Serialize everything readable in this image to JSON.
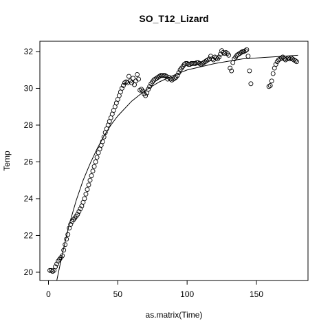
{
  "chart_data": {
    "type": "scatter",
    "title": "SO_T12_Lizard",
    "x_label": "as.matrix(Time)",
    "y_label": "Temp",
    "xlim": [
      -6.2,
      187.2
    ],
    "ylim": [
      19.55,
      32.56
    ],
    "xticks": [
      0,
      50,
      100,
      150
    ],
    "yticks": [
      20,
      22,
      24,
      26,
      28,
      30,
      32
    ],
    "color": "#000000",
    "x": [
      1,
      2,
      3,
      4,
      5,
      6,
      7,
      8,
      9,
      10,
      11,
      12,
      13,
      14,
      15,
      16,
      17,
      18,
      19,
      20,
      21,
      22,
      23,
      24,
      25,
      26,
      27,
      28,
      29,
      30,
      31,
      32,
      33,
      34,
      35,
      36,
      37,
      38,
      39,
      40,
      41,
      42,
      43,
      44,
      45,
      46,
      47,
      48,
      49,
      50,
      51,
      52,
      53,
      54,
      55,
      56,
      57,
      58,
      59,
      60,
      61,
      62,
      63,
      64,
      65,
      66,
      67,
      68,
      69,
      70,
      71,
      72,
      73,
      74,
      75,
      76,
      77,
      78,
      79,
      80,
      81,
      82,
      83,
      84,
      85,
      86,
      87,
      88,
      89,
      90,
      91,
      92,
      93,
      94,
      95,
      96,
      97,
      98,
      99,
      100,
      101,
      102,
      103,
      104,
      105,
      106,
      107,
      108,
      109,
      110,
      111,
      112,
      113,
      114,
      115,
      116,
      117,
      118,
      119,
      120,
      121,
      122,
      123,
      124,
      125,
      126,
      127,
      128,
      129,
      130,
      131,
      132,
      133,
      134,
      135,
      136,
      137,
      138,
      139,
      140,
      141,
      142,
      143,
      144,
      145,
      146,
      159,
      160,
      161,
      162,
      163,
      164,
      165,
      166,
      167,
      168,
      169,
      170,
      171,
      172,
      173,
      174,
      175,
      176,
      177,
      178,
      179
    ],
    "values": [
      20.1,
      20.1,
      20.05,
      20.1,
      20.3,
      20.45,
      20.6,
      20.7,
      20.8,
      20.9,
      21.2,
      21.5,
      21.8,
      22.05,
      22.4,
      22.6,
      22.75,
      22.85,
      22.95,
      23.05,
      23.15,
      23.3,
      23.45,
      23.6,
      23.8,
      24.0,
      24.25,
      24.5,
      24.75,
      25.0,
      25.25,
      25.5,
      25.75,
      26.0,
      26.25,
      26.5,
      26.7,
      26.9,
      27.1,
      27.35,
      27.6,
      27.8,
      28.0,
      28.2,
      28.4,
      28.6,
      28.8,
      29.0,
      29.2,
      29.4,
      29.6,
      29.8,
      30.0,
      30.15,
      30.3,
      30.35,
      30.3,
      30.65,
      30.4,
      30.3,
      30.55,
      30.2,
      30.4,
      30.75,
      30.5,
      29.9,
      29.95,
      29.85,
      29.7,
      29.6,
      29.75,
      29.95,
      30.1,
      30.25,
      30.35,
      30.45,
      30.5,
      30.55,
      30.6,
      30.65,
      30.7,
      30.7,
      30.7,
      30.7,
      30.65,
      30.5,
      30.6,
      30.5,
      30.45,
      30.5,
      30.55,
      30.6,
      30.7,
      30.85,
      31.0,
      31.1,
      31.2,
      31.3,
      31.35,
      31.35,
      31.3,
      31.3,
      31.35,
      31.35,
      31.35,
      31.35,
      31.4,
      31.4,
      31.35,
      31.3,
      31.35,
      31.4,
      31.45,
      31.5,
      31.55,
      31.6,
      31.75,
      31.6,
      31.55,
      31.7,
      31.65,
      31.6,
      31.7,
      31.85,
      32.05,
      31.95,
      31.9,
      31.95,
      31.9,
      31.8,
      31.1,
      30.95,
      31.4,
      31.6,
      31.7,
      31.8,
      31.85,
      31.9,
      31.95,
      32.0,
      32.0,
      32.05,
      32.1,
      31.75,
      30.95,
      30.25,
      30.1,
      30.15,
      30.4,
      30.8,
      31.1,
      31.3,
      31.45,
      31.55,
      31.6,
      31.65,
      31.7,
      31.6,
      31.55,
      31.6,
      31.65,
      31.6,
      31.65,
      31.6,
      31.55,
      31.5,
      31.45
    ],
    "fit": {
      "x": [
        6,
        10,
        15,
        20,
        25,
        30,
        35,
        40,
        45,
        50,
        60,
        70,
        80,
        90,
        100,
        120,
        140,
        160,
        180
      ],
      "values": [
        19.55,
        21.0,
        22.6,
        23.9,
        25.0,
        25.9,
        26.7,
        27.4,
        28.0,
        28.5,
        29.3,
        29.9,
        30.35,
        30.7,
        31.0,
        31.35,
        31.6,
        31.7,
        31.8
      ]
    }
  }
}
